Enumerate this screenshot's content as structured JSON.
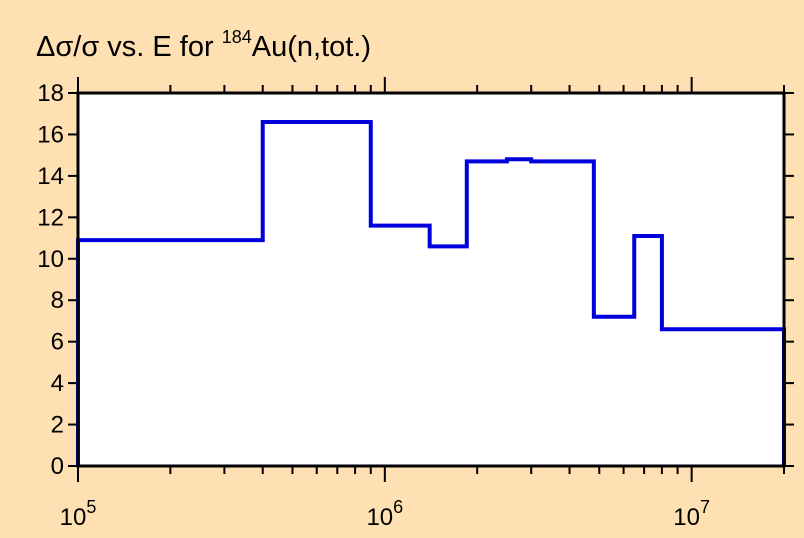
{
  "chart_data": {
    "type": "line",
    "title": {
      "prefix": "Δσ/σ vs. E for ",
      "isotope_mass": "184",
      "suffix": "Au(n,tot.)"
    },
    "xlabel": "",
    "ylabel": "",
    "x_scale": "log",
    "xlim": [
      100000,
      20000000
    ],
    "ylim": [
      0,
      18
    ],
    "y_ticks": [
      0,
      2,
      4,
      6,
      8,
      10,
      12,
      14,
      16,
      18
    ],
    "x_major_ticks": [
      {
        "value": 100000,
        "base": "10",
        "exp": "5"
      },
      {
        "value": 1000000,
        "base": "10",
        "exp": "6"
      },
      {
        "value": 10000000,
        "base": "10",
        "exp": "7"
      }
    ],
    "grid": false,
    "series": [
      {
        "color": "#0000DD",
        "step_edges": [
          100000,
          400000,
          900000,
          1400000,
          1850000,
          2500000,
          3000000,
          4800000,
          6500000,
          8000000,
          20000000
        ],
        "values": [
          10.9,
          16.6,
          11.6,
          10.6,
          14.7,
          14.8,
          14.7,
          7.2,
          11.1,
          6.6
        ]
      }
    ]
  },
  "colors": {
    "background": "#FFE0B2",
    "plot_area": "#FFFFFF",
    "axis": "#000000",
    "series": "#0000DD"
  }
}
